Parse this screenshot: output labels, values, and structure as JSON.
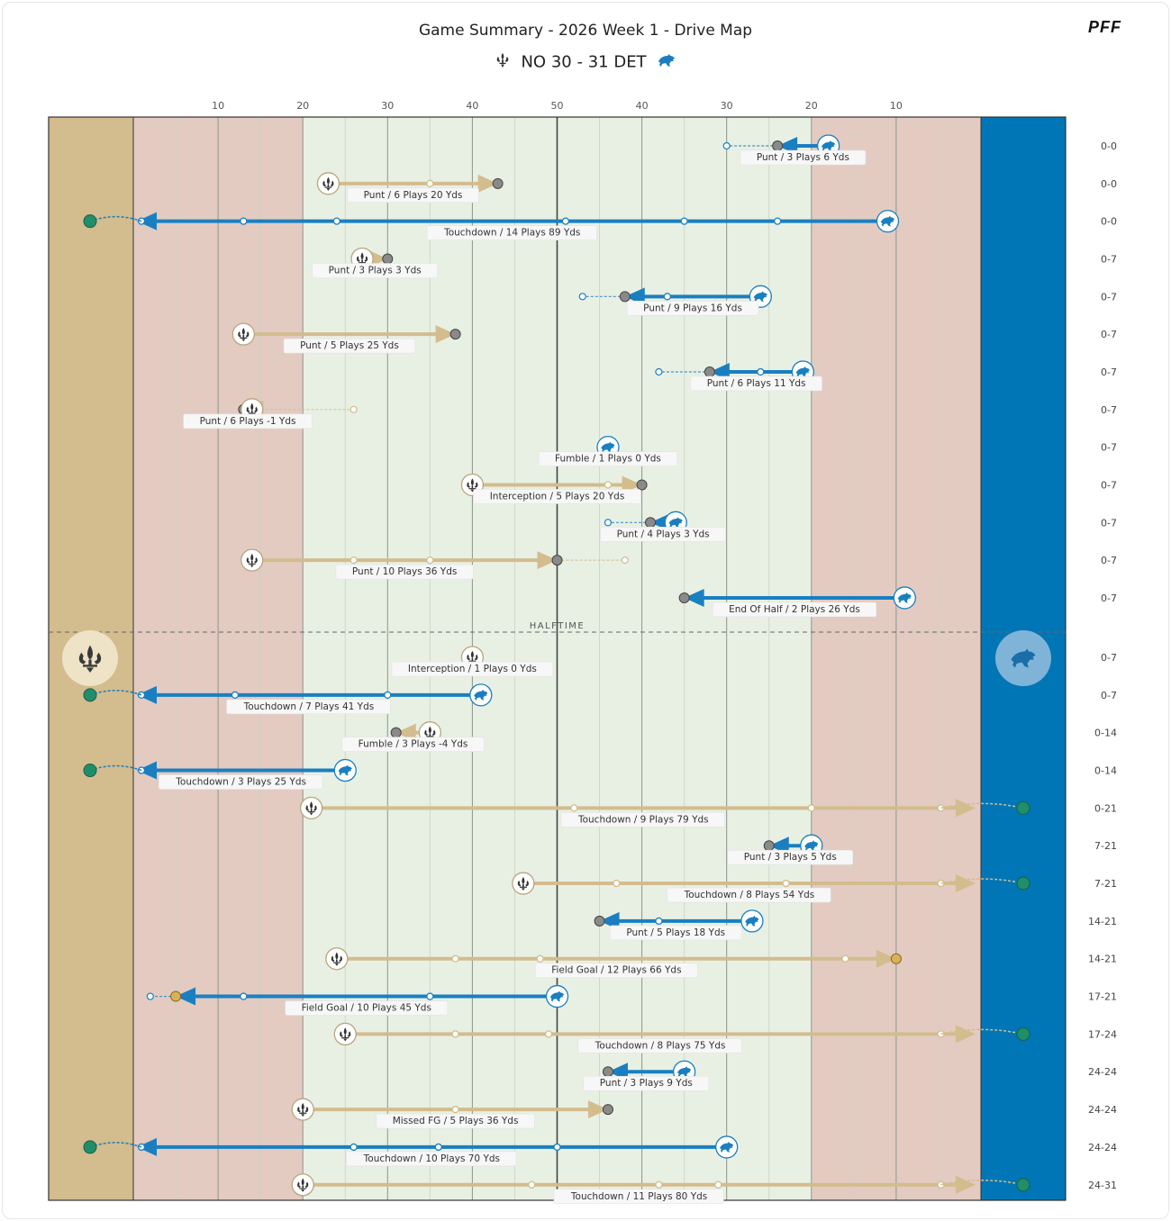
{
  "title": "Game Summary - 2026 Week 1 - Drive Map",
  "score": {
    "away": "NO",
    "away_score": "30",
    "home_score": "31",
    "home": "DET"
  },
  "brand": "PFF",
  "halftime_label": "HALFTIME",
  "colors": {
    "no": "#d3bc8d",
    "det": "#1a7fc1",
    "det_endzone": "#0076b6",
    "no_endzone": "#d3bc8d",
    "red_zone": "#e3cbc2",
    "mid_field": "#e8f0e4",
    "score_dot": "#1f8f6a",
    "fg_dot": "#d8b25a",
    "end_dot": "#8a8a8a"
  },
  "chart_data": {
    "type": "drive-map",
    "x_axis_ticks": [
      "10",
      "20",
      "30",
      "40",
      "50",
      "40",
      "30",
      "20",
      "10"
    ],
    "halftime_after_drive": 13,
    "drives": [
      {
        "team": "DET",
        "start": 82,
        "end": 76,
        "result": "Punt",
        "plays": 3,
        "yds": 6,
        "label": "Punt / 3 Plays 6 Yds",
        "score": "0-0",
        "mids": [],
        "tail": 70,
        "td": false
      },
      {
        "team": "NO",
        "start": 23,
        "end": 43,
        "result": "Punt",
        "plays": 6,
        "yds": 20,
        "label": "Punt / 6 Plays 20 Yds",
        "score": "0-0",
        "mids": [
          35
        ],
        "tail": null,
        "td": false
      },
      {
        "team": "DET",
        "start": 89,
        "end": 0,
        "result": "Touchdown",
        "plays": 14,
        "yds": 89,
        "label": "Touchdown / 14 Plays 89 Yds",
        "score": "0-0",
        "mids": [
          76,
          65,
          51,
          24,
          13
        ],
        "tail": null,
        "td": true
      },
      {
        "team": "NO",
        "start": 27,
        "end": 30,
        "result": "Punt",
        "plays": 3,
        "yds": 3,
        "label": "Punt / 3 Plays 3 Yds",
        "score": "0-7",
        "mids": [],
        "tail": null,
        "td": false
      },
      {
        "team": "DET",
        "start": 74,
        "end": 58,
        "result": "Punt",
        "plays": 9,
        "yds": 16,
        "label": "Punt / 9 Plays 16 Yds",
        "score": "0-7",
        "mids": [
          63
        ],
        "tail": 53,
        "td": false
      },
      {
        "team": "NO",
        "start": 13,
        "end": 38,
        "result": "Punt",
        "plays": 5,
        "yds": 25,
        "label": "Punt / 5 Plays 25 Yds",
        "score": "0-7",
        "mids": [],
        "tail": null,
        "td": false
      },
      {
        "team": "DET",
        "start": 79,
        "end": 68,
        "result": "Punt",
        "plays": 6,
        "yds": 11,
        "label": "Punt / 6 Plays 11 Yds",
        "score": "0-7",
        "mids": [
          74
        ],
        "tail": 62,
        "td": false
      },
      {
        "team": "NO",
        "start": 14,
        "end": 13,
        "result": "Punt",
        "plays": 6,
        "yds": -1,
        "label": "Punt / 6 Plays -1 Yds",
        "score": "0-7",
        "mids": [],
        "tail": 26,
        "td": false
      },
      {
        "team": "DET",
        "start": 56,
        "end": 56,
        "result": "Fumble",
        "plays": 1,
        "yds": 0,
        "label": "Fumble / 1 Plays 0 Yds",
        "score": "0-7",
        "mids": [],
        "tail": null,
        "td": false
      },
      {
        "team": "NO",
        "start": 40,
        "end": 60,
        "result": "Interception",
        "plays": 5,
        "yds": 20,
        "label": "Interception / 5 Plays 20 Yds",
        "score": "0-7",
        "mids": [
          56
        ],
        "tail": null,
        "td": false
      },
      {
        "team": "DET",
        "start": 64,
        "end": 61,
        "result": "Punt",
        "plays": 4,
        "yds": 3,
        "label": "Punt / 4 Plays 3 Yds",
        "score": "0-7",
        "mids": [],
        "tail": 56,
        "td": false
      },
      {
        "team": "NO",
        "start": 14,
        "end": 50,
        "result": "Punt",
        "plays": 10,
        "yds": 36,
        "label": "Punt / 10 Plays 36 Yds",
        "score": "0-7",
        "mids": [
          26,
          35
        ],
        "tail": 58,
        "td": false
      },
      {
        "team": "DET",
        "start": 91,
        "end": 65,
        "result": "End Of Half",
        "plays": 2,
        "yds": 26,
        "label": "End Of Half / 2 Plays 26 Yds",
        "score": "0-7",
        "mids": [],
        "tail": null,
        "td": false
      },
      {
        "team": "NO",
        "start": 40,
        "end": 40,
        "result": "Interception",
        "plays": 1,
        "yds": 0,
        "label": "Interception / 1 Plays 0 Yds",
        "score": "0-7",
        "mids": [],
        "tail": null,
        "td": false
      },
      {
        "team": "DET",
        "start": 41,
        "end": 0,
        "result": "Touchdown",
        "plays": 7,
        "yds": 41,
        "label": "Touchdown / 7 Plays 41 Yds",
        "score": "0-7",
        "mids": [
          30,
          12
        ],
        "tail": null,
        "td": true
      },
      {
        "team": "NO",
        "start": 35,
        "end": 31,
        "result": "Fumble",
        "plays": 3,
        "yds": -4,
        "label": "Fumble / 3 Plays -4 Yds",
        "score": "0-14",
        "mids": [],
        "tail": null,
        "td": false
      },
      {
        "team": "DET",
        "start": 25,
        "end": 0,
        "result": "Touchdown",
        "plays": 3,
        "yds": 25,
        "label": "Touchdown / 3 Plays 25 Yds",
        "score": "0-14",
        "mids": [],
        "tail": null,
        "td": true
      },
      {
        "team": "NO",
        "start": 21,
        "end": 100,
        "result": "Touchdown",
        "plays": 9,
        "yds": 79,
        "label": "Touchdown / 9 Plays 79 Yds",
        "score": "0-21",
        "mids": [
          52,
          80
        ],
        "tail": null,
        "td": true
      },
      {
        "team": "DET",
        "start": 80,
        "end": 75,
        "result": "Punt",
        "plays": 3,
        "yds": 5,
        "label": "Punt / 3 Plays 5 Yds",
        "score": "7-21",
        "mids": [],
        "tail": null,
        "td": false
      },
      {
        "team": "NO",
        "start": 46,
        "end": 100,
        "result": "Touchdown",
        "plays": 8,
        "yds": 54,
        "label": "Touchdown / 8 Plays 54 Yds",
        "score": "7-21",
        "mids": [
          57,
          77
        ],
        "tail": null,
        "td": true
      },
      {
        "team": "DET",
        "start": 73,
        "end": 55,
        "result": "Punt",
        "plays": 5,
        "yds": 18,
        "label": "Punt / 5 Plays 18 Yds",
        "score": "14-21",
        "mids": [
          62
        ],
        "tail": null,
        "td": false
      },
      {
        "team": "NO",
        "start": 24,
        "end": 90,
        "result": "Field Goal",
        "plays": 12,
        "yds": 66,
        "label": "Field Goal / 12 Plays 66 Yds",
        "score": "14-21",
        "mids": [
          38,
          48,
          84
        ],
        "tail": null,
        "td": false
      },
      {
        "team": "DET",
        "start": 50,
        "end": 5,
        "result": "Field Goal",
        "plays": 10,
        "yds": 45,
        "label": "Field Goal / 10 Plays 45 Yds",
        "score": "17-21",
        "mids": [
          35,
          13
        ],
        "tail": 2,
        "td": false
      },
      {
        "team": "NO",
        "start": 25,
        "end": 100,
        "result": "Touchdown",
        "plays": 8,
        "yds": 75,
        "label": "Touchdown / 8 Plays 75 Yds",
        "score": "17-24",
        "mids": [
          38,
          49
        ],
        "tail": null,
        "td": true
      },
      {
        "team": "DET",
        "start": 65,
        "end": 56,
        "result": "Punt",
        "plays": 3,
        "yds": 9,
        "label": "Punt / 3 Plays 9 Yds",
        "score": "24-24",
        "mids": [],
        "tail": null,
        "td": false
      },
      {
        "team": "NO",
        "start": 20,
        "end": 56,
        "result": "Missed FG",
        "plays": 5,
        "yds": 36,
        "label": "Missed FG / 5 Plays 36 Yds",
        "score": "24-24",
        "mids": [
          38
        ],
        "tail": null,
        "td": false
      },
      {
        "team": "DET",
        "start": 70,
        "end": 0,
        "result": "Touchdown",
        "plays": 10,
        "yds": 70,
        "label": "Touchdown / 10 Plays 70 Yds",
        "score": "24-24",
        "mids": [
          36,
          26,
          50
        ],
        "tail": null,
        "td": true
      },
      {
        "team": "NO",
        "start": 20,
        "end": 100,
        "result": "Touchdown",
        "plays": 11,
        "yds": 80,
        "label": "Touchdown / 11 Plays 80 Yds",
        "score": "24-31",
        "mids": [
          47,
          62,
          69
        ],
        "tail": null,
        "td": true
      }
    ]
  }
}
